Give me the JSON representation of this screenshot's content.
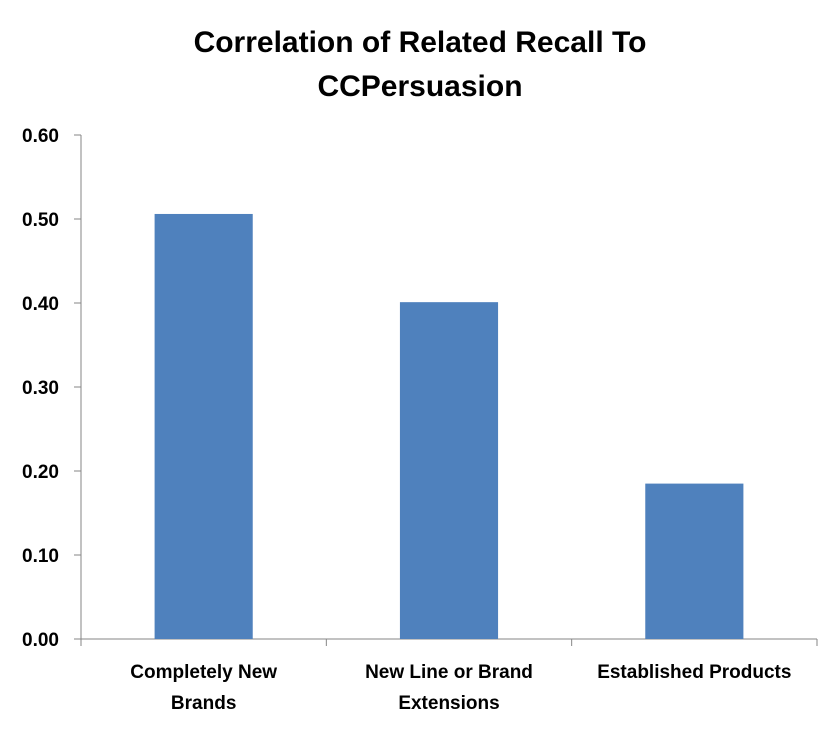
{
  "chart_data": {
    "type": "bar",
    "title_lines": [
      "Correlation of Related Recall To",
      "CCPersuasion"
    ],
    "categories": [
      [
        "Completely New",
        "Brands"
      ],
      [
        "New Line or Brand",
        "Extensions"
      ],
      [
        "Established Products"
      ]
    ],
    "values": [
      0.506,
      0.401,
      0.185
    ],
    "ylim": [
      0,
      0.6
    ],
    "yticks": [
      "0.00",
      "0.10",
      "0.20",
      "0.30",
      "0.40",
      "0.50",
      "0.60"
    ],
    "grid": false,
    "legend": "none",
    "bar_color": "#4f81bd"
  }
}
